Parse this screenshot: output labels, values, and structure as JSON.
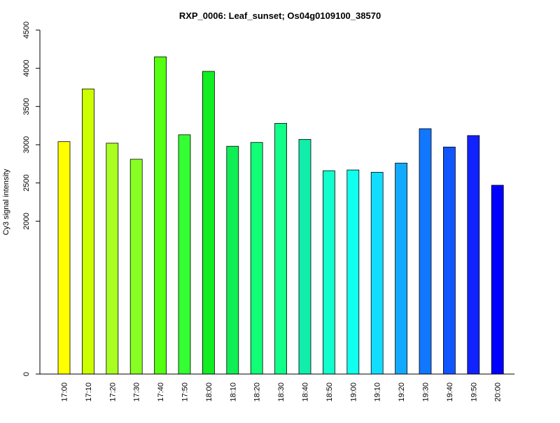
{
  "chart_data": {
    "type": "bar",
    "title": "RXP_0006: Leaf_sunset; Os04g0109100_38570",
    "xlabel": "",
    "ylabel": "Cy3 signal intensity",
    "categories": [
      "17:00",
      "17:10",
      "17:20",
      "17:30",
      "17:40",
      "17:50",
      "18:00",
      "18:10",
      "18:20",
      "18:30",
      "18:40",
      "18:50",
      "19:00",
      "19:10",
      "19:20",
      "19:30",
      "19:40",
      "19:50",
      "20:00"
    ],
    "values": [
      3040,
      3730,
      3020,
      2810,
      4150,
      3130,
      3960,
      2980,
      3030,
      3280,
      3070,
      2660,
      2670,
      2640,
      2760,
      3210,
      2970,
      3120,
      2470
    ],
    "colors": [
      "#ffff00",
      "#ccff00",
      "#aaff22",
      "#88ff22",
      "#55ff11",
      "#33ff33",
      "#11ee22",
      "#11ee55",
      "#11ff77",
      "#11ff88",
      "#11eeaa",
      "#11ffcc",
      "#11ffee",
      "#11ddff",
      "#11aaff",
      "#1177ff",
      "#1155ff",
      "#1122ff",
      "#0000ff"
    ],
    "yticks": [
      0,
      2000,
      2500,
      3000,
      3500,
      4000,
      4500
    ],
    "ytick_labels": [
      "0",
      "2000",
      "2500",
      "3000",
      "3500",
      "4000",
      "4500"
    ],
    "ylim": [
      0,
      4500
    ],
    "grid": false,
    "legend": "none"
  }
}
